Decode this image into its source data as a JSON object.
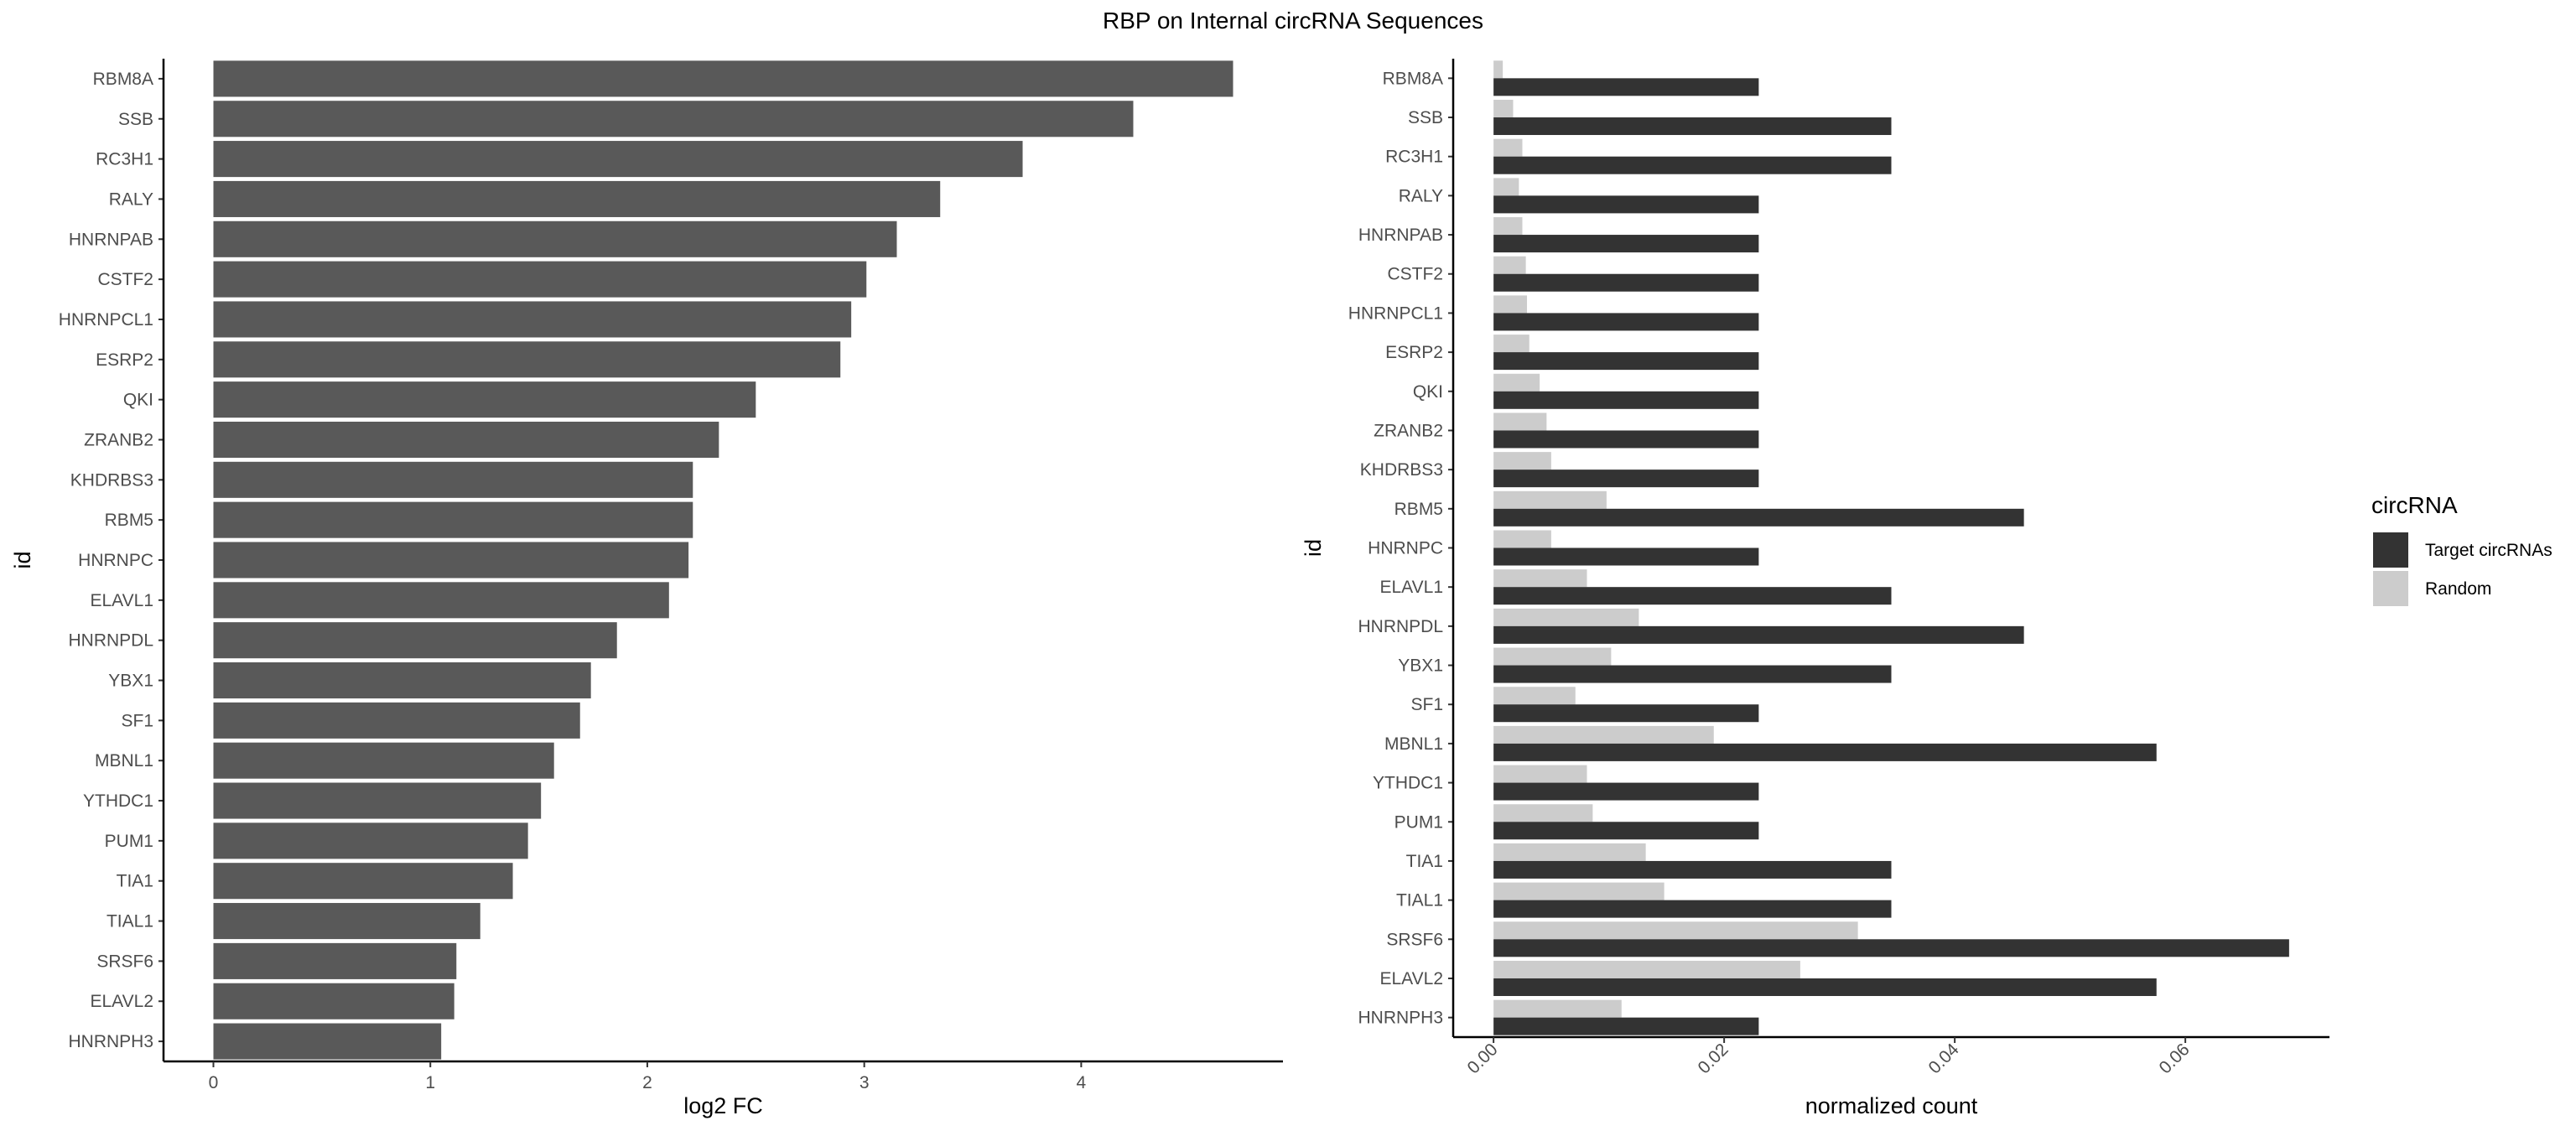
{
  "figure": {
    "title": "RBP on Internal circRNA Sequences"
  },
  "chart_data": [
    {
      "type": "bar",
      "orientation": "horizontal",
      "categories": [
        "RBM8A",
        "SSB",
        "RC3H1",
        "RALY",
        "HNRNPAB",
        "CSTF2",
        "HNRNPCL1",
        "ESRP2",
        "QKI",
        "ZRANB2",
        "KHDRBS3",
        "RBM5",
        "HNRNPC",
        "ELAVL1",
        "HNRNPDL",
        "YBX1",
        "SF1",
        "MBNL1",
        "YTHDC1",
        "PUM1",
        "TIA1",
        "TIAL1",
        "SRSF6",
        "ELAVL2",
        "HNRNPH3"
      ],
      "values": [
        4.7,
        4.24,
        3.73,
        3.35,
        3.15,
        3.01,
        2.94,
        2.89,
        2.5,
        2.33,
        2.21,
        2.21,
        2.19,
        2.1,
        1.86,
        1.74,
        1.69,
        1.57,
        1.51,
        1.45,
        1.38,
        1.23,
        1.12,
        1.11,
        1.05
      ],
      "xlabel": "log2 FC",
      "ylabel": "id",
      "xlim": [
        -0.23,
        4.93
      ],
      "xticks": [
        0,
        1,
        2,
        3,
        4
      ],
      "bar_color": "#595959",
      "grid": false
    },
    {
      "type": "bar",
      "orientation": "horizontal",
      "grouped": true,
      "categories": [
        "RBM8A",
        "SSB",
        "RC3H1",
        "RALY",
        "HNRNPAB",
        "CSTF2",
        "HNRNPCL1",
        "ESRP2",
        "QKI",
        "ZRANB2",
        "KHDRBS3",
        "RBM5",
        "HNRNPC",
        "ELAVL1",
        "HNRNPDL",
        "YBX1",
        "SF1",
        "MBNL1",
        "YTHDC1",
        "PUM1",
        "TIA1",
        "TIAL1",
        "SRSF6",
        "ELAVL2",
        "HNRNPH3"
      ],
      "series": [
        {
          "name": "Random",
          "color": "#cccccc",
          "values": [
            0.0008,
            0.0017,
            0.0025,
            0.0022,
            0.0025,
            0.0028,
            0.0029,
            0.0031,
            0.004,
            0.0046,
            0.005,
            0.0098,
            0.005,
            0.0081,
            0.0126,
            0.0102,
            0.0071,
            0.0191,
            0.0081,
            0.0086,
            0.0132,
            0.0148,
            0.0316,
            0.0266,
            0.0111
          ]
        },
        {
          "name": "Target circRNAs",
          "color": "#333333",
          "values": [
            0.023,
            0.0345,
            0.0345,
            0.023,
            0.023,
            0.023,
            0.023,
            0.023,
            0.023,
            0.023,
            0.023,
            0.046,
            0.023,
            0.0345,
            0.046,
            0.0345,
            0.023,
            0.0575,
            0.023,
            0.023,
            0.0345,
            0.0345,
            0.069,
            0.0575,
            0.023
          ]
        }
      ],
      "xlabel": "normalized count",
      "ylabel": "id",
      "xlim": [
        -0.0035,
        0.0725
      ],
      "xticks": [
        0.0,
        0.02,
        0.04,
        0.06
      ],
      "xtick_labels": [
        "0.00",
        "0.02",
        "0.04",
        "0.06"
      ],
      "grid": false,
      "legend": {
        "title": "circRNA",
        "placement": "right",
        "entries": [
          {
            "label": "Target circRNAs",
            "color": "#333333"
          },
          {
            "label": "Random",
            "color": "#cccccc"
          }
        ]
      }
    }
  ]
}
